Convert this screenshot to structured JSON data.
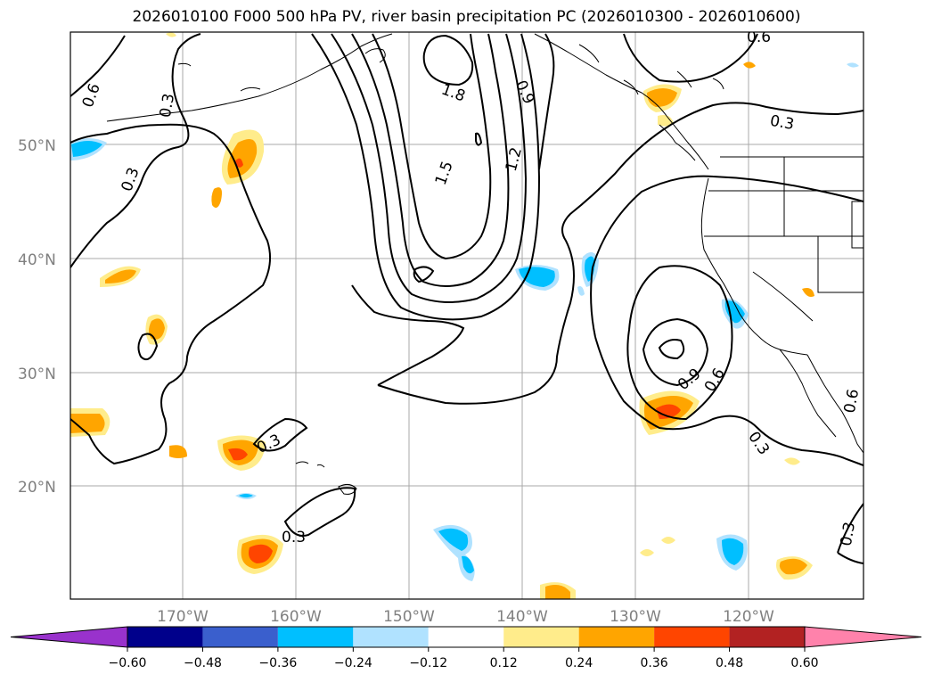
{
  "title": "2026010100 F000 500 hPa PV, river basin precipitation PC (2026010300 - 2026010600)",
  "lat_labels": [
    "50°N",
    "40°N",
    "30°N",
    "20°N"
  ],
  "lon_labels": [
    "170°W",
    "160°W",
    "150°W",
    "140°W",
    "130°W",
    "120°W"
  ],
  "contour_labels": [
    "0.6",
    "0.3",
    "0.3",
    "1.8",
    "1.5",
    "1.2",
    "0.9",
    "0.6",
    "0.3",
    "0.9",
    "0.6",
    "0.3",
    "0.3",
    "0.3",
    "0.3",
    "0.6"
  ],
  "colorbar": {
    "ticks": [
      "−0.60",
      "−0.48",
      "−0.36",
      "−0.24",
      "−0.12",
      "0.12",
      "0.24",
      "0.36",
      "0.48",
      "0.60"
    ],
    "colors": [
      "#9932cc",
      "#00008b",
      "#3a5fcd",
      "#00bfff",
      "#b0e2ff",
      "#ffffff",
      "#ffec8b",
      "#ffa500",
      "#ff4500",
      "#b22222",
      "#ff82ab"
    ]
  },
  "colors": {
    "pv_contour": "#000000",
    "gridline": "#a9a9a9",
    "axis_label": "#808080"
  }
}
